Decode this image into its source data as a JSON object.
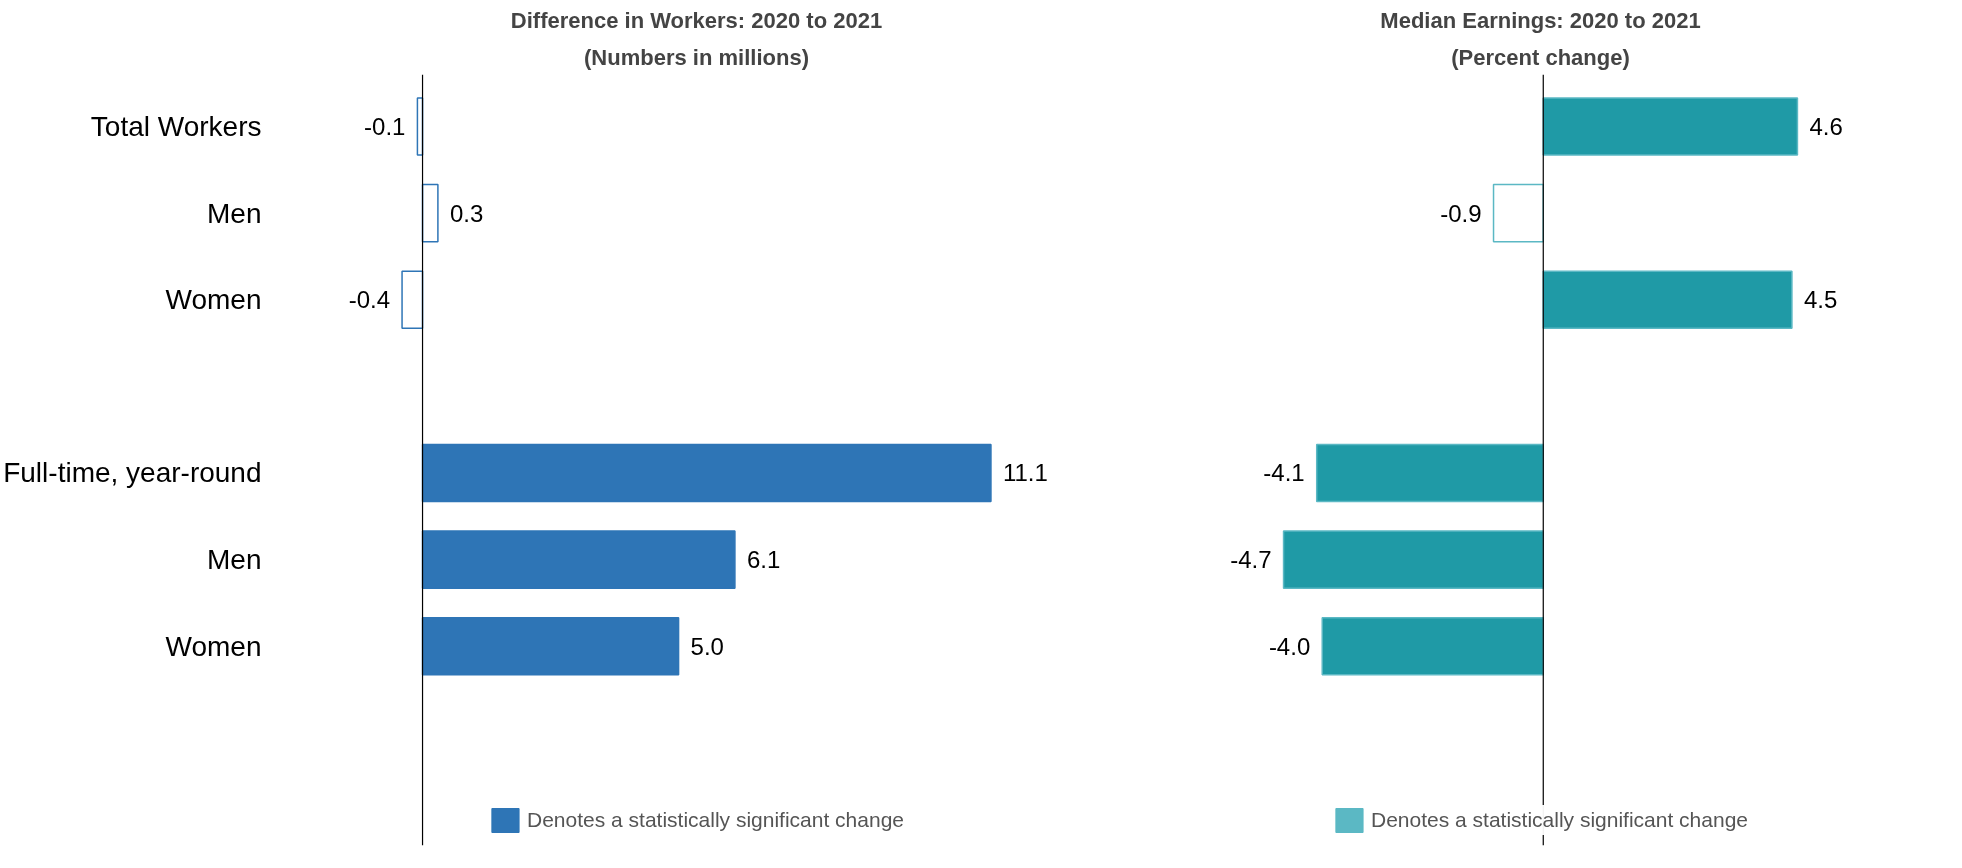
{
  "chart_data": [
    {
      "type": "bar",
      "orientation": "horizontal",
      "title": "Difference in Workers: 2020 to 2021",
      "subtitle": "(Numbers in millions)",
      "categories": [
        "Total Workers",
        "Men",
        "Women",
        null,
        "Full-time, year-round",
        "Men",
        "Women"
      ],
      "series": [
        {
          "name": "Denotes a statistically significant change",
          "color": "#2e75b6",
          "values": [
            -0.1,
            0.3,
            -0.4,
            null,
            11.1,
            6.1,
            5.0
          ],
          "colors": [
            "#ffffff",
            "#ffffff",
            "#ffffff",
            null,
            "#2e75b6",
            "#2e75b6",
            "#2e75b6"
          ],
          "value_labels": [
            "-0.1",
            "0.3",
            "-0.4",
            null,
            "11.1",
            "6.1",
            "5.0"
          ]
        }
      ],
      "legend": "bottom",
      "grid": false,
      "tick_labels": "y"
    },
    {
      "type": "bar",
      "orientation": "horizontal",
      "title": "Median Earnings: 2020 to 2021",
      "subtitle": "(Percent change)",
      "categories": [
        null,
        null,
        null,
        null,
        null,
        null,
        null
      ],
      "series": [
        {
          "name": "Denotes a statistically significant change",
          "color": "#5bb8c4",
          "values": [
            4.6,
            -0.9,
            4.5,
            null,
            -4.1,
            -4.7,
            -4.0
          ],
          "colors": [
            "#1f9aa6",
            "#ffffff",
            "#1f9aa6",
            null,
            "#1f9aa6",
            "#1f9aa6",
            "#1f9aa6"
          ],
          "value_labels": [
            "4.6",
            "-0.9",
            "4.5",
            null,
            "-4.1",
            "-4.7",
            "-4.0"
          ]
        }
      ],
      "legend": "bottom",
      "grid": false,
      "tick_labels": false
    }
  ]
}
